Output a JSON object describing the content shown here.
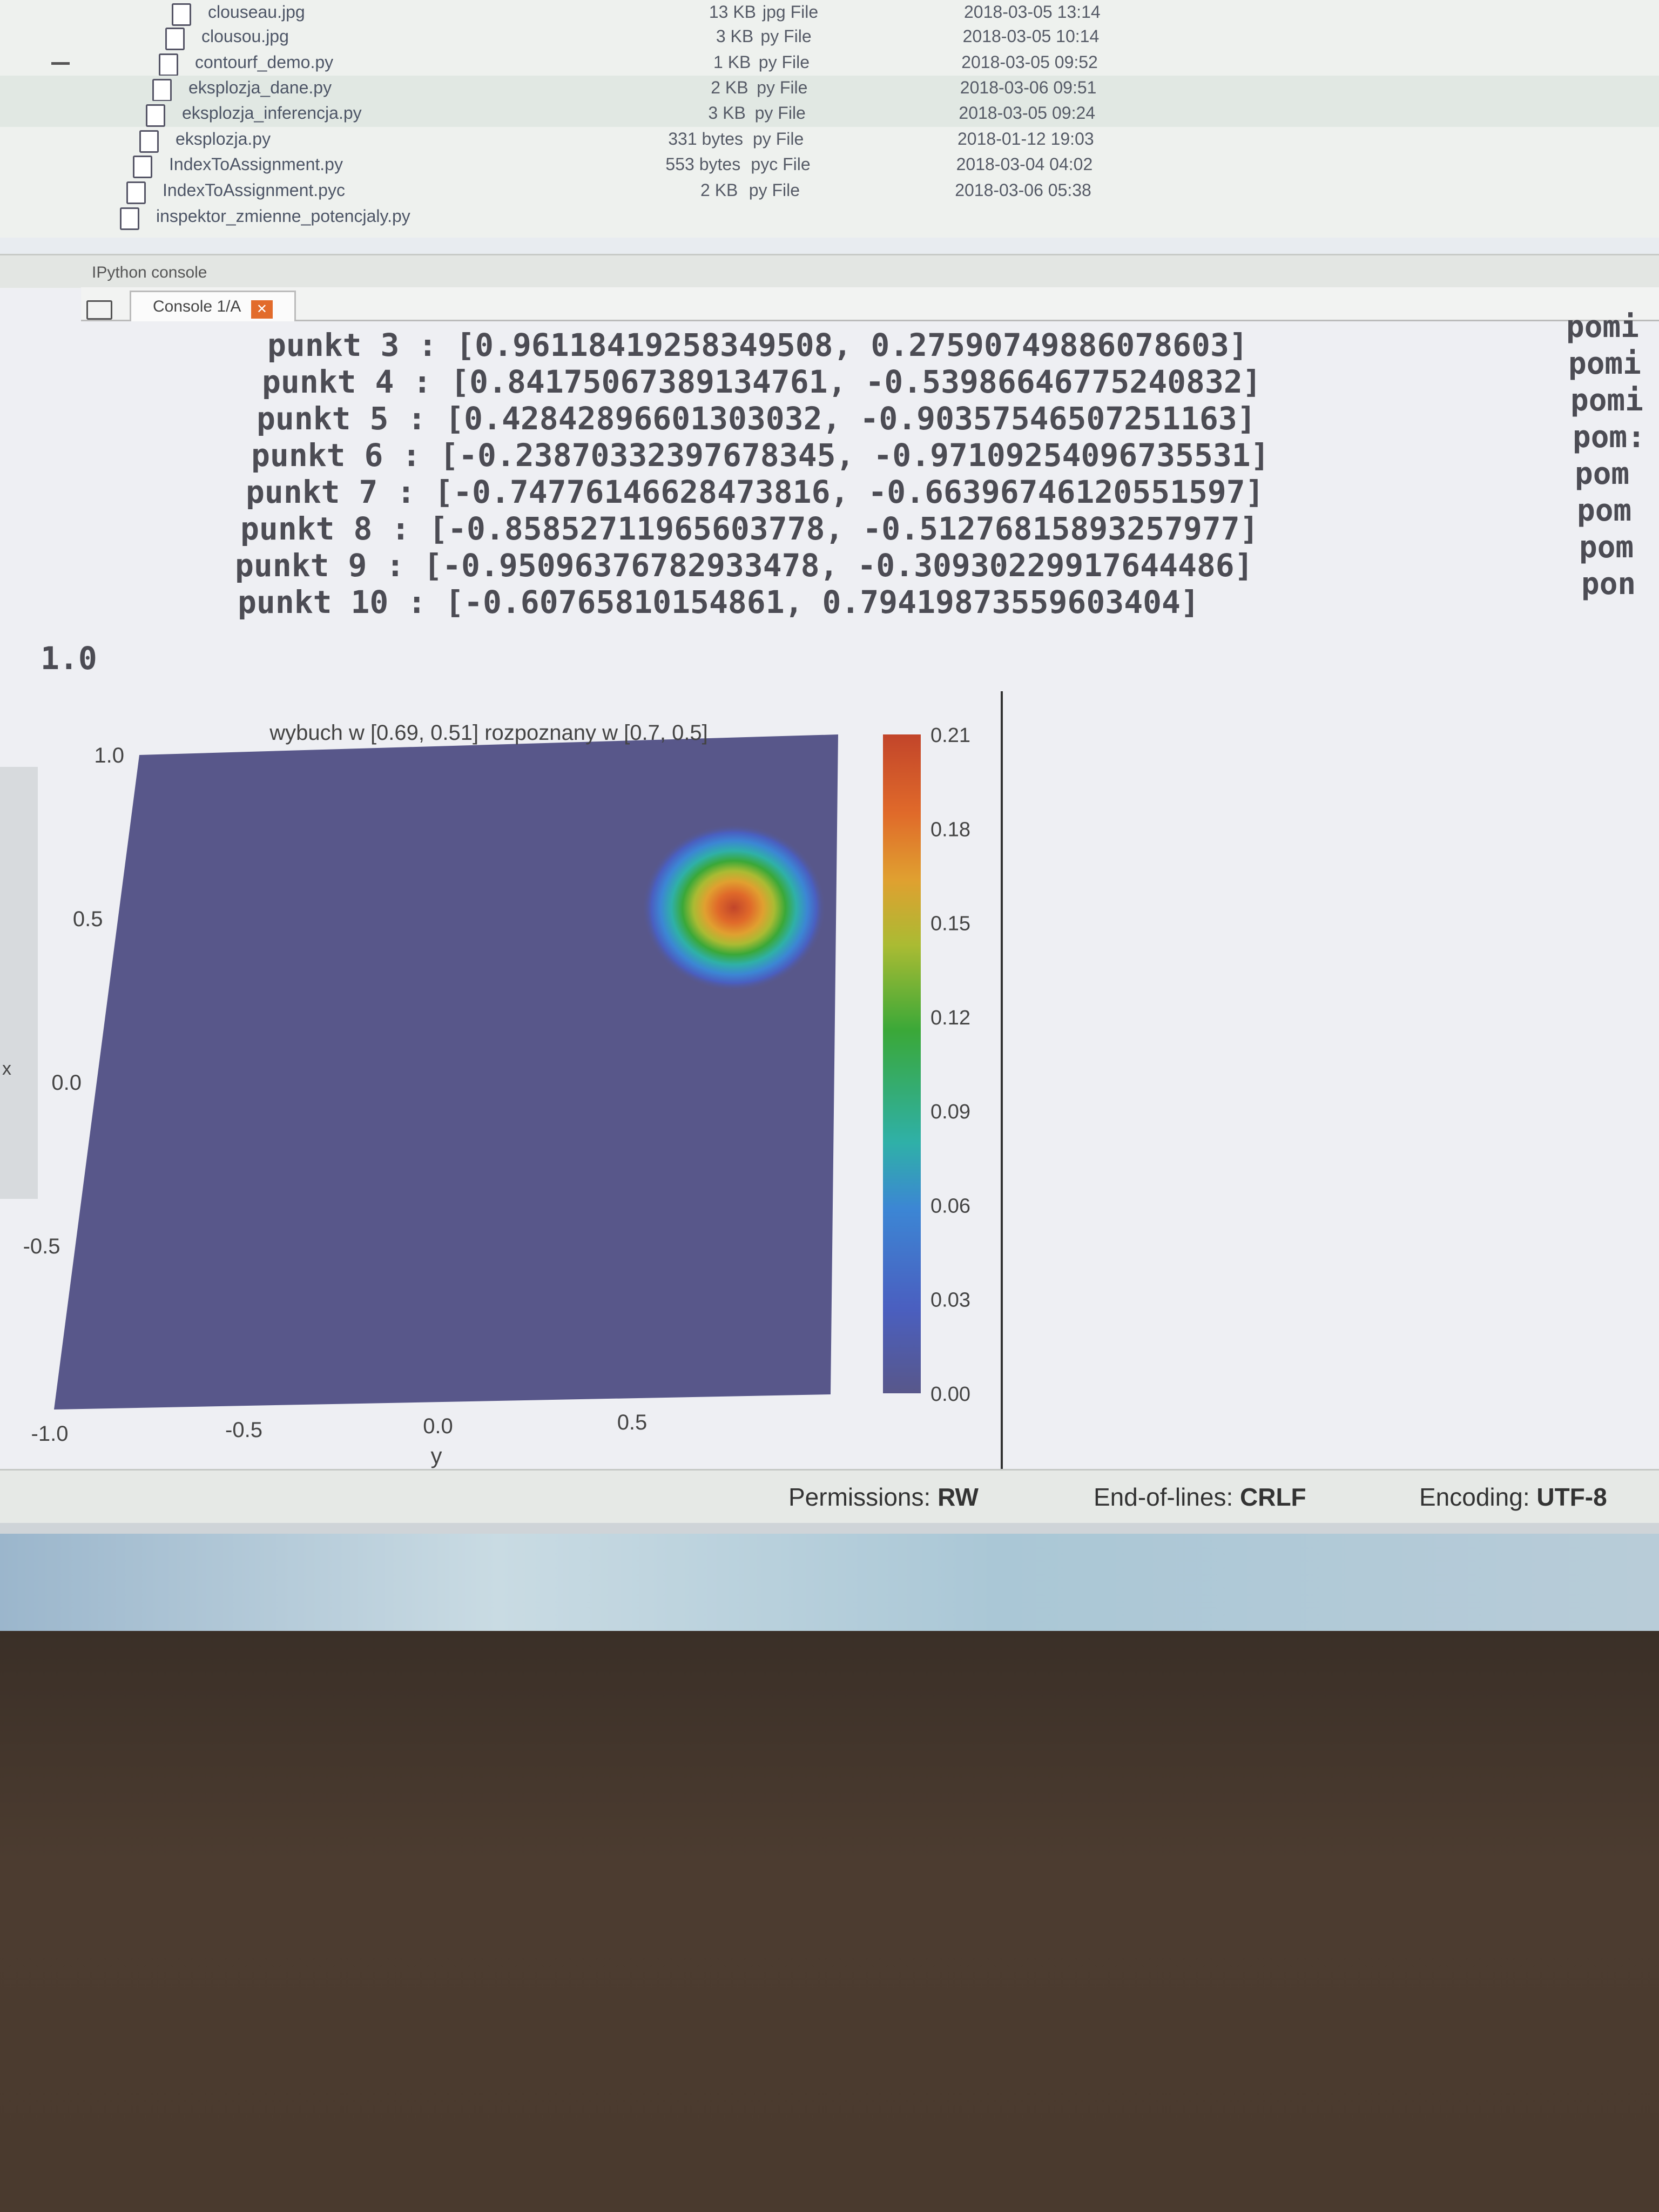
{
  "files": [
    {
      "name": "clouseau.jpg",
      "size": "13 KB",
      "type": "jpg File",
      "date": "2018-03-05 13:14"
    },
    {
      "name": "clousou.jpg",
      "size": "3 KB",
      "type": "py File",
      "date": "2018-03-05 10:14"
    },
    {
      "name": "contourf_demo.py",
      "size": "1 KB",
      "type": "py File",
      "date": "2018-03-05 09:52"
    },
    {
      "name": "eksplozja_dane.py",
      "size": "2 KB",
      "type": "py File",
      "date": "2018-03-06 09:51"
    },
    {
      "name": "eksplozja_inferencja.py",
      "size": "3 KB",
      "type": "py File",
      "date": "2018-03-05 09:24"
    },
    {
      "name": "eksplozja.py",
      "size": "331 bytes",
      "type": "py File",
      "date": "2018-01-12 19:03"
    },
    {
      "name": "IndexToAssignment.py",
      "size": "553 bytes",
      "type": "pyc File",
      "date": "2018-03-04 04:02"
    },
    {
      "name": "IndexToAssignment.pyc",
      "size": "2 KB",
      "type": "py File",
      "date": "2018-03-06 05:38"
    },
    {
      "name": "inspektor_zmienne_potencjaly.py",
      "size": "",
      "type": "",
      "date": ""
    }
  ],
  "console": {
    "pane_title": "IPython console",
    "tab_label": "Console 1/A",
    "tab_close": "✕",
    "lines": [
      "punkt 3 : [0.96118419258349508, 0.27590749886078603]",
      "punkt 4 : [0.84175067389134761, -0.53986646775240832]",
      "punkt 5 : [0.42842896601303032, -0.90357546507251163]",
      "punkt 6 : [-0.23870332397678345, -0.97109254096735531]",
      "punkt 7 : [-0.74776146628473816, -0.66396746120551597]",
      "punkt 8 : [-0.85852711965603778, -0.51276815893257977]",
      "punkt 9 : [-0.95096376782933478, -0.30930229917644486]",
      "punkt 10 : [-0.60765810154861, 0.79419873559603404]"
    ],
    "right_fragments": [
      "pomi",
      "pomi",
      "pomi",
      "pom:",
      "pom",
      "pom",
      "pom",
      "pon"
    ],
    "value_line": "1.0"
  },
  "chart_data": {
    "type": "heatmap",
    "title": "wybuch w [0.69, 0.51]   rozpoznany w [0.7, 0.5]",
    "xlabel": "y",
    "ylabel": "x",
    "xlim": [
      -1.0,
      1.0
    ],
    "ylim": [
      -1.0,
      1.0
    ],
    "x_ticks": [
      "-1.0",
      "-0.5",
      "0.0",
      "0.5"
    ],
    "y_ticks": [
      "1.0",
      "0.5",
      "0.0",
      "-0.5"
    ],
    "peak": {
      "x": 0.7,
      "y": 0.5,
      "value": 0.21
    },
    "colorbar": {
      "min": 0.0,
      "max": 0.21,
      "ticks": [
        "0.21",
        "0.18",
        "0.15",
        "0.12",
        "0.09",
        "0.06",
        "0.03",
        "0.00"
      ]
    },
    "colormap": [
      "#58578a",
      "#4a5fc0",
      "#3c86d4",
      "#2fb0a8",
      "#3aa838",
      "#aabb33",
      "#e0a030",
      "#e06a2a",
      "#c2452a"
    ]
  },
  "status": {
    "permissions_label": "Permissions:",
    "permissions_value": "RW",
    "eol_label": "End-of-lines:",
    "eol_value": "CRLF",
    "encoding_label": "Encoding:",
    "encoding_value": "UTF-8"
  }
}
